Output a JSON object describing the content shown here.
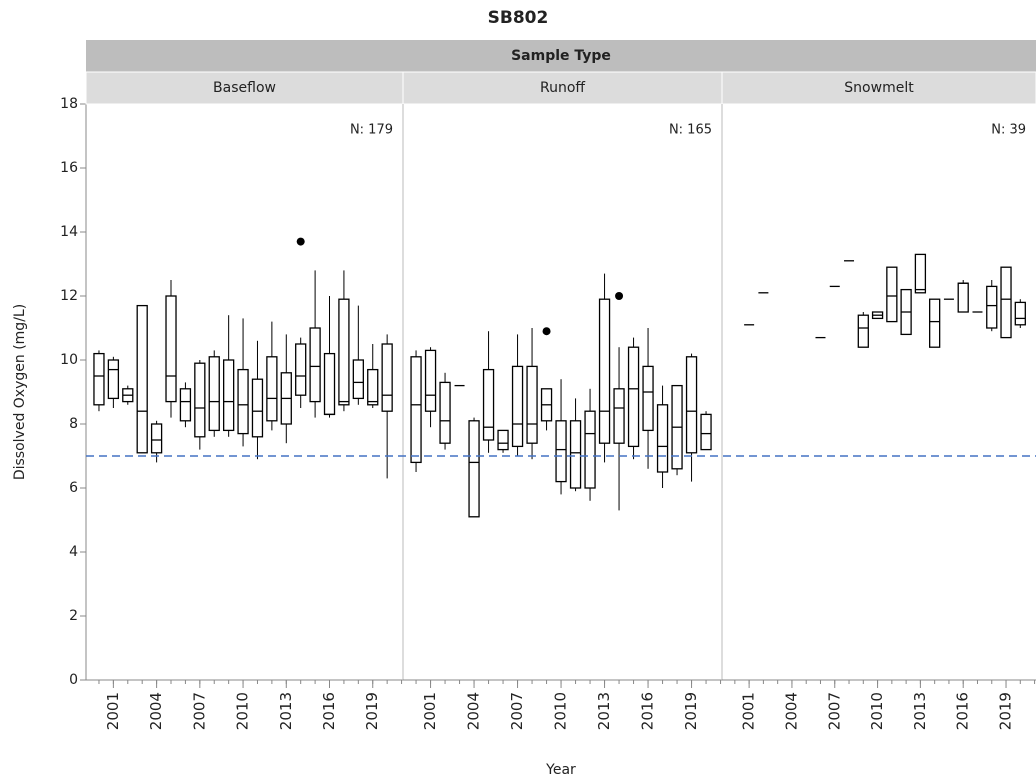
{
  "chart_data": {
    "type": "box",
    "title": "SB802",
    "facet_header": "Sample Type",
    "y_label": "Dissolved Oxygen (mg/L)",
    "x_label": "Year",
    "ylim": [
      0,
      18
    ],
    "yticks": [
      0,
      2,
      4,
      6,
      8,
      10,
      12,
      14,
      16,
      18
    ],
    "xlim": [
      1999.1,
      2021.1
    ],
    "xticks": [
      2001,
      2004,
      2007,
      2010,
      2013,
      2016,
      2019
    ],
    "reference_line": 7,
    "reference_color": "#4472c4",
    "box_color": "#000000",
    "panels": [
      {
        "name": "Baseflow",
        "annotation": "N: 179",
        "boxes": [
          {
            "x": 2000,
            "low": 8.4,
            "q1": 8.6,
            "median": 9.5,
            "q3": 10.2,
            "high": 10.3
          },
          {
            "x": 2001,
            "low": 8.5,
            "q1": 8.8,
            "median": 9.7,
            "q3": 10.0,
            "high": 10.1
          },
          {
            "x": 2002,
            "low": 8.6,
            "q1": 8.7,
            "median": 8.9,
            "q3": 9.1,
            "high": 9.2
          },
          {
            "x": 2003,
            "low": 7.1,
            "q1": 7.1,
            "median": 8.4,
            "q3": 11.7,
            "high": 11.7
          },
          {
            "x": 2004,
            "low": 6.8,
            "q1": 7.1,
            "median": 7.5,
            "q3": 8.0,
            "high": 8.1
          },
          {
            "x": 2005,
            "low": 8.2,
            "q1": 8.7,
            "median": 9.5,
            "q3": 12.0,
            "high": 12.5
          },
          {
            "x": 2006,
            "low": 7.9,
            "q1": 8.1,
            "median": 8.7,
            "q3": 9.1,
            "high": 9.3
          },
          {
            "x": 2007,
            "low": 7.2,
            "q1": 7.6,
            "median": 8.5,
            "q3": 9.9,
            "high": 10.0
          },
          {
            "x": 2008,
            "low": 7.6,
            "q1": 7.8,
            "median": 8.7,
            "q3": 10.1,
            "high": 10.3
          },
          {
            "x": 2009,
            "low": 7.6,
            "q1": 7.8,
            "median": 8.7,
            "q3": 10.0,
            "high": 11.4
          },
          {
            "x": 2010,
            "low": 7.3,
            "q1": 7.7,
            "median": 8.6,
            "q3": 9.7,
            "high": 11.3
          },
          {
            "x": 2011,
            "low": 6.9,
            "q1": 7.6,
            "median": 8.4,
            "q3": 9.4,
            "high": 10.6
          },
          {
            "x": 2012,
            "low": 7.8,
            "q1": 8.1,
            "median": 8.8,
            "q3": 10.1,
            "high": 11.2
          },
          {
            "x": 2013,
            "low": 7.4,
            "q1": 8.0,
            "median": 8.8,
            "q3": 9.6,
            "high": 10.8
          },
          {
            "x": 2014,
            "low": 8.5,
            "q1": 8.9,
            "median": 9.5,
            "q3": 10.5,
            "high": 10.7
          },
          {
            "x": 2015,
            "low": 8.2,
            "q1": 8.7,
            "median": 9.8,
            "q3": 11.0,
            "high": 12.8
          },
          {
            "x": 2016,
            "low": 8.2,
            "q1": 8.3,
            "median": 8.3,
            "q3": 10.2,
            "high": 12.0
          },
          {
            "x": 2017,
            "low": 8.4,
            "q1": 8.6,
            "median": 8.7,
            "q3": 11.9,
            "high": 12.8
          },
          {
            "x": 2018,
            "low": 8.6,
            "q1": 8.8,
            "median": 9.3,
            "q3": 10.0,
            "high": 11.7
          },
          {
            "x": 2019,
            "low": 8.5,
            "q1": 8.6,
            "median": 8.7,
            "q3": 9.7,
            "high": 10.5
          },
          {
            "x": 2020,
            "low": 6.3,
            "q1": 8.4,
            "median": 8.9,
            "q3": 10.5,
            "high": 10.8
          }
        ],
        "outliers": [
          {
            "x": 2014,
            "y": 13.7
          }
        ]
      },
      {
        "name": "Runoff",
        "annotation": "N: 165",
        "boxes": [
          {
            "x": 2000,
            "low": 6.5,
            "q1": 6.8,
            "median": 8.6,
            "q3": 10.1,
            "high": 10.3
          },
          {
            "x": 2001,
            "low": 7.9,
            "q1": 8.4,
            "median": 8.9,
            "q3": 10.3,
            "high": 10.4
          },
          {
            "x": 2002,
            "low": 7.2,
            "q1": 7.4,
            "median": 8.1,
            "q3": 9.3,
            "high": 9.6
          },
          {
            "x": 2003,
            "low": 9.2,
            "q1": 9.2,
            "median": 9.2,
            "q3": 9.2,
            "high": 9.2
          },
          {
            "x": 2004,
            "low": 5.1,
            "q1": 5.1,
            "median": 6.8,
            "q3": 8.1,
            "high": 8.2
          },
          {
            "x": 2005,
            "low": 7.1,
            "q1": 7.5,
            "median": 7.9,
            "q3": 9.7,
            "high": 10.9
          },
          {
            "x": 2006,
            "low": 7.1,
            "q1": 7.2,
            "median": 7.4,
            "q3": 7.8,
            "high": 7.8
          },
          {
            "x": 2007,
            "low": 7.0,
            "q1": 7.3,
            "median": 8.0,
            "q3": 9.8,
            "high": 10.8
          },
          {
            "x": 2008,
            "low": 6.9,
            "q1": 7.4,
            "median": 8.0,
            "q3": 9.8,
            "high": 11.0
          },
          {
            "x": 2009,
            "low": 7.8,
            "q1": 8.1,
            "median": 8.6,
            "q3": 9.1,
            "high": 9.1
          },
          {
            "x": 2010,
            "low": 5.8,
            "q1": 6.2,
            "median": 7.2,
            "q3": 8.1,
            "high": 9.4
          },
          {
            "x": 2011,
            "low": 5.9,
            "q1": 6.0,
            "median": 7.1,
            "q3": 8.1,
            "high": 8.8
          },
          {
            "x": 2012,
            "low": 5.6,
            "q1": 6.0,
            "median": 7.7,
            "q3": 8.4,
            "high": 9.1
          },
          {
            "x": 2013,
            "low": 6.8,
            "q1": 7.4,
            "median": 8.4,
            "q3": 11.9,
            "high": 12.7
          },
          {
            "x": 2014,
            "low": 5.3,
            "q1": 7.4,
            "median": 8.5,
            "q3": 9.1,
            "high": 10.4
          },
          {
            "x": 2015,
            "low": 6.9,
            "q1": 7.3,
            "median": 9.1,
            "q3": 10.4,
            "high": 10.7
          },
          {
            "x": 2016,
            "low": 6.6,
            "q1": 7.8,
            "median": 9.0,
            "q3": 9.8,
            "high": 11.0
          },
          {
            "x": 2017,
            "low": 6.0,
            "q1": 6.5,
            "median": 7.3,
            "q3": 8.6,
            "high": 9.2
          },
          {
            "x": 2018,
            "low": 6.4,
            "q1": 6.6,
            "median": 7.9,
            "q3": 9.2,
            "high": 9.2
          },
          {
            "x": 2019,
            "low": 6.2,
            "q1": 7.1,
            "median": 8.4,
            "q3": 10.1,
            "high": 10.2
          },
          {
            "x": 2020,
            "low": 7.2,
            "q1": 7.2,
            "median": 7.7,
            "q3": 8.3,
            "high": 8.4
          }
        ],
        "outliers": [
          {
            "x": 2009,
            "y": 10.9
          },
          {
            "x": 2014,
            "y": 12.0
          }
        ]
      },
      {
        "name": "Snowmelt",
        "annotation": "N: 39",
        "boxes": [
          {
            "x": 2001,
            "low": 11.1,
            "q1": 11.1,
            "median": 11.1,
            "q3": 11.1,
            "high": 11.1
          },
          {
            "x": 2002,
            "low": 12.1,
            "q1": 12.1,
            "median": 12.1,
            "q3": 12.1,
            "high": 12.1
          },
          {
            "x": 2006,
            "low": 10.7,
            "q1": 10.7,
            "median": 10.7,
            "q3": 10.7,
            "high": 10.7
          },
          {
            "x": 2007,
            "low": 12.3,
            "q1": 12.3,
            "median": 12.3,
            "q3": 12.3,
            "high": 12.3
          },
          {
            "x": 2008,
            "low": 13.1,
            "q1": 13.1,
            "median": 13.1,
            "q3": 13.1,
            "high": 13.1
          },
          {
            "x": 2009,
            "low": 10.4,
            "q1": 10.4,
            "median": 11.0,
            "q3": 11.4,
            "high": 11.5
          },
          {
            "x": 2010,
            "low": 11.3,
            "q1": 11.3,
            "median": 11.4,
            "q3": 11.5,
            "high": 11.5
          },
          {
            "x": 2011,
            "low": 11.2,
            "q1": 11.2,
            "median": 12.0,
            "q3": 12.9,
            "high": 12.9
          },
          {
            "x": 2012,
            "low": 10.8,
            "q1": 10.8,
            "median": 11.5,
            "q3": 12.2,
            "high": 12.2
          },
          {
            "x": 2013,
            "low": 12.1,
            "q1": 12.1,
            "median": 12.2,
            "q3": 13.3,
            "high": 13.3
          },
          {
            "x": 2014,
            "low": 10.4,
            "q1": 10.4,
            "median": 11.2,
            "q3": 11.9,
            "high": 11.9
          },
          {
            "x": 2015,
            "low": 11.9,
            "q1": 11.9,
            "median": 11.9,
            "q3": 11.9,
            "high": 11.9
          },
          {
            "x": 2016,
            "low": 11.5,
            "q1": 11.5,
            "median": 12.4,
            "q3": 12.4,
            "high": 12.5
          },
          {
            "x": 2017,
            "low": 11.5,
            "q1": 11.5,
            "median": 11.5,
            "q3": 11.5,
            "high": 11.5
          },
          {
            "x": 2018,
            "low": 10.9,
            "q1": 11.0,
            "median": 11.7,
            "q3": 12.3,
            "high": 12.5
          },
          {
            "x": 2019,
            "low": 10.7,
            "q1": 10.7,
            "median": 11.9,
            "q3": 12.9,
            "high": 12.9
          },
          {
            "x": 2020,
            "low": 11.0,
            "q1": 11.1,
            "median": 11.3,
            "q3": 11.8,
            "high": 11.9
          }
        ],
        "outliers": []
      }
    ]
  }
}
